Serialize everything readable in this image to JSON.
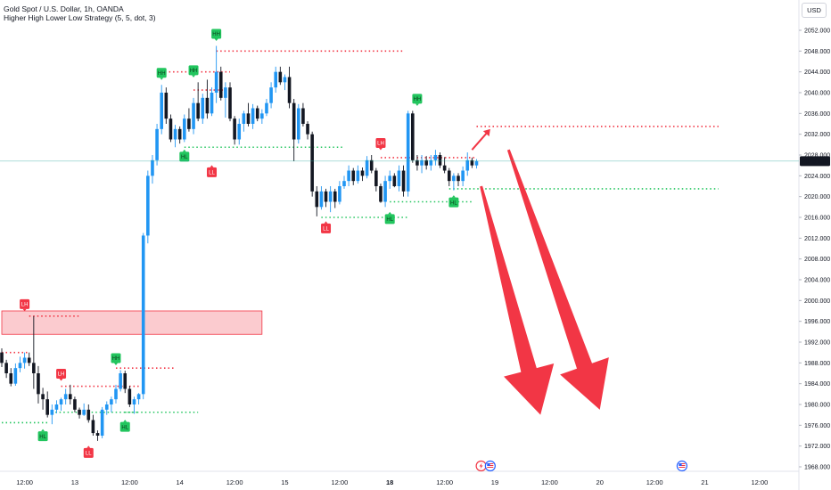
{
  "header": {
    "title": "Gold Spot / U.S. Dollar, 1h, OANDA",
    "subtitle": "Higher High Lower Low Strategy (5, 5, dot, 3)",
    "currency": "USD"
  },
  "colors": {
    "up": "#2196f3",
    "down": "#131722",
    "bullish_label": "#22c55e",
    "bearish_label": "#f23645",
    "supply_zone": "#f7a1a8",
    "arrow": "#f23645",
    "price_tag": "#131722"
  },
  "chart_data": {
    "type": "candlestick",
    "ylim": [
      1968,
      2054
    ],
    "yticks": [
      1968,
      1972,
      1976,
      1980,
      1984,
      1988,
      1992,
      1996,
      2000,
      2004,
      2008,
      2012,
      2016,
      2020,
      2024,
      2028,
      2032,
      2036,
      2040,
      2044,
      2048,
      2052
    ],
    "ytick_labels": [
      "1968.000",
      "1972.000",
      "1976.000",
      "1980.000",
      "1984.000",
      "1988.000",
      "1992.000",
      "1996.000",
      "2000.000",
      "2004.000",
      "2008.000",
      "2012.000",
      "2016.000",
      "2020.000",
      "2024.000",
      "2028.000",
      "2032.000",
      "2036.000",
      "2040.000",
      "2044.000",
      "2048.000",
      "2052.000"
    ],
    "xticks": [
      {
        "label": "12:00",
        "bar": 5,
        "bold": false
      },
      {
        "label": "13",
        "bar": 16,
        "bold": false
      },
      {
        "label": "12:00",
        "bar": 28,
        "bold": false
      },
      {
        "label": "14",
        "bar": 39,
        "bold": false
      },
      {
        "label": "12:00",
        "bar": 51,
        "bold": false
      },
      {
        "label": "15",
        "bar": 62,
        "bold": false
      },
      {
        "label": "12:00",
        "bar": 74,
        "bold": false
      },
      {
        "label": "18",
        "bar": 85,
        "bold": true
      },
      {
        "label": "12:00",
        "bar": 97,
        "bold": false
      },
      {
        "label": "19",
        "bar": 108,
        "bold": false
      },
      {
        "label": "12:00",
        "bar": 120,
        "bold": false
      },
      {
        "label": "20",
        "bar": 131,
        "bold": false
      },
      {
        "label": "12:00",
        "bar": 143,
        "bold": false
      },
      {
        "label": "21",
        "bar": 154,
        "bold": false
      },
      {
        "label": "12:00",
        "bar": 166,
        "bold": false
      }
    ],
    "last_price": 2026.83,
    "last_price_label": "2026.830",
    "ohlc": [
      [
        1990.0,
        1990.8,
        1987.2,
        1988.0
      ],
      [
        1988.0,
        1988.6,
        1985.1,
        1986.0
      ],
      [
        1986.0,
        1987.0,
        1983.5,
        1984.0
      ],
      [
        1984.0,
        1987.9,
        1983.6,
        1987.0
      ],
      [
        1987.0,
        1989.2,
        1986.2,
        1988.0
      ],
      [
        1988.0,
        1990.0,
        1986.9,
        1989.0
      ],
      [
        1989.0,
        1990.0,
        1987.4,
        1988.0
      ],
      [
        1988.0,
        1997.0,
        1983.0,
        1986.0
      ],
      [
        1986.0,
        1987.4,
        1980.2,
        1982.0
      ],
      [
        1982.0,
        1983.2,
        1979.0,
        1981.0
      ],
      [
        1981.0,
        1982.5,
        1977.5,
        1978.0
      ],
      [
        1978.0,
        1980.0,
        1976.2,
        1979.0
      ],
      [
        1979.0,
        1980.8,
        1978.3,
        1980.0
      ],
      [
        1980.0,
        1981.3,
        1978.8,
        1981.0
      ],
      [
        1981.0,
        1983.0,
        1980.0,
        1982.0
      ],
      [
        1982.0,
        1983.8,
        1980.0,
        1981.0
      ],
      [
        1981.0,
        1981.5,
        1978.5,
        1979.0
      ],
      [
        1979.0,
        1979.4,
        1977.3,
        1978.0
      ],
      [
        1978.0,
        1980.2,
        1977.8,
        1979.0
      ],
      [
        1979.0,
        1980.0,
        1976.5,
        1977.0
      ],
      [
        1977.0,
        1978.0,
        1974.0,
        1974.5
      ],
      [
        1974.5,
        1975.0,
        1973.0,
        1974.0
      ],
      [
        1974.0,
        1979.5,
        1973.5,
        1979.0
      ],
      [
        1979.0,
        1980.6,
        1978.0,
        1980.0
      ],
      [
        1980.0,
        1981.5,
        1978.5,
        1981.0
      ],
      [
        1981.0,
        1983.8,
        1980.2,
        1983.0
      ],
      [
        1983.0,
        1986.6,
        1982.5,
        1986.0
      ],
      [
        1986.0,
        1986.5,
        1982.2,
        1983.0
      ],
      [
        1983.0,
        1983.6,
        1979.5,
        1980.0
      ],
      [
        1980.0,
        1981.5,
        1978.2,
        1981.0
      ],
      [
        1981.0,
        1982.2,
        1980.0,
        1982.0
      ],
      [
        1982.0,
        2013.0,
        1981.0,
        2012.5
      ],
      [
        2012.5,
        2025.0,
        2011.0,
        2024.0
      ],
      [
        2024.0,
        2028.0,
        2022.5,
        2027.0
      ],
      [
        2027.0,
        2034.0,
        2026.0,
        2033.0
      ],
      [
        2033.0,
        2041.5,
        2032.0,
        2040.0
      ],
      [
        2040.0,
        2041.0,
        2034.0,
        2035.0
      ],
      [
        2035.0,
        2035.8,
        2030.5,
        2031.0
      ],
      [
        2031.0,
        2033.8,
        2029.5,
        2033.0
      ],
      [
        2033.0,
        2033.5,
        2030.2,
        2031.0
      ],
      [
        2031.0,
        2035.8,
        2030.5,
        2035.0
      ],
      [
        2035.0,
        2037.0,
        2032.5,
        2033.0
      ],
      [
        2033.0,
        2039.0,
        2032.0,
        2038.0
      ],
      [
        2038.0,
        2042.0,
        2034.5,
        2035.0
      ],
      [
        2035.0,
        2039.8,
        2034.0,
        2039.0
      ],
      [
        2039.0,
        2042.5,
        2035.0,
        2036.0
      ],
      [
        2036.0,
        2041.0,
        2035.5,
        2040.0
      ],
      [
        2040.0,
        2049.0,
        2038.0,
        2044.0
      ],
      [
        2044.0,
        2045.0,
        2038.5,
        2039.0
      ],
      [
        2039.0,
        2042.0,
        2035.2,
        2041.0
      ],
      [
        2041.0,
        2042.0,
        2034.5,
        2035.0
      ],
      [
        2035.0,
        2035.5,
        2030.0,
        2031.0
      ],
      [
        2031.0,
        2035.0,
        2030.0,
        2034.0
      ],
      [
        2034.0,
        2036.5,
        2032.5,
        2036.0
      ],
      [
        2036.0,
        2038.0,
        2033.5,
        2034.0
      ],
      [
        2034.0,
        2037.8,
        2033.0,
        2037.0
      ],
      [
        2037.0,
        2037.5,
        2034.5,
        2035.0
      ],
      [
        2035.0,
        2036.8,
        2034.0,
        2036.0
      ],
      [
        2036.0,
        2038.8,
        2035.5,
        2038.0
      ],
      [
        2038.0,
        2042.0,
        2037.0,
        2041.0
      ],
      [
        2041.0,
        2045.0,
        2040.0,
        2044.0
      ],
      [
        2044.0,
        2045.0,
        2041.5,
        2042.0
      ],
      [
        2042.0,
        2043.5,
        2040.5,
        2043.0
      ],
      [
        2043.0,
        2045.0,
        2037.0,
        2038.0
      ],
      [
        2038.0,
        2038.8,
        2026.8,
        2031.0
      ],
      [
        2031.0,
        2037.8,
        2030.2,
        2037.0
      ],
      [
        2037.0,
        2038.0,
        2033.5,
        2034.0
      ],
      [
        2034.0,
        2034.5,
        2031.0,
        2032.0
      ],
      [
        2032.0,
        2032.5,
        2020.0,
        2021.0
      ],
      [
        2021.0,
        2022.0,
        2016.2,
        2018.0
      ],
      [
        2018.0,
        2022.0,
        2017.5,
        2021.0
      ],
      [
        2021.0,
        2021.5,
        2018.0,
        2019.0
      ],
      [
        2019.0,
        2022.0,
        2017.0,
        2021.0
      ],
      [
        2021.0,
        2021.5,
        2017.8,
        2019.0
      ],
      [
        2019.0,
        2023.0,
        2018.5,
        2022.0
      ],
      [
        2022.0,
        2024.0,
        2021.5,
        2023.0
      ],
      [
        2023.0,
        2026.0,
        2022.0,
        2025.0
      ],
      [
        2025.0,
        2025.5,
        2022.2,
        2023.0
      ],
      [
        2023.0,
        2026.0,
        2022.5,
        2025.0
      ],
      [
        2025.0,
        2025.6,
        2023.0,
        2024.0
      ],
      [
        2024.0,
        2027.8,
        2023.5,
        2027.0
      ],
      [
        2027.0,
        2028.0,
        2024.5,
        2025.0
      ],
      [
        2025.0,
        2025.5,
        2021.0,
        2022.0
      ],
      [
        2022.0,
        2022.5,
        2018.8,
        2019.0
      ],
      [
        2019.0,
        2024.0,
        2018.0,
        2023.0
      ],
      [
        2023.0,
        2025.0,
        2021.5,
        2024.0
      ],
      [
        2024.0,
        2024.5,
        2021.8,
        2022.0
      ],
      [
        2022.0,
        2026.0,
        2021.0,
        2025.0
      ],
      [
        2025.0,
        2026.0,
        2020.0,
        2021.0
      ],
      [
        2021.0,
        2036.5,
        2020.0,
        2036.0
      ],
      [
        2036.0,
        2036.5,
        2026.5,
        2027.0
      ],
      [
        2027.0,
        2028.0,
        2025.0,
        2026.0
      ],
      [
        2026.0,
        2028.0,
        2024.5,
        2027.0
      ],
      [
        2027.0,
        2027.8,
        2025.2,
        2026.0
      ],
      [
        2026.0,
        2028.0,
        2025.0,
        2027.0
      ],
      [
        2027.0,
        2029.0,
        2026.0,
        2028.0
      ],
      [
        2028.0,
        2028.5,
        2025.5,
        2026.0
      ],
      [
        2026.0,
        2027.6,
        2024.5,
        2025.0
      ],
      [
        2025.0,
        2025.5,
        2022.0,
        2023.0
      ],
      [
        2023.0,
        2024.5,
        2021.2,
        2024.0
      ],
      [
        2024.0,
        2024.5,
        2022.0,
        2023.0
      ],
      [
        2023.0,
        2025.8,
        2022.0,
        2025.0
      ],
      [
        2025.0,
        2028.5,
        2024.0,
        2027.0
      ],
      [
        2027.0,
        2027.5,
        2025.5,
        2026.0
      ],
      [
        2026.0,
        2027.2,
        2025.4,
        2026.83
      ]
    ],
    "levels": [
      {
        "name": "hh-top-line",
        "kind": "resistance",
        "price": 2048.0,
        "from": 47,
        "to": 88
      },
      {
        "name": "hh-mid-line",
        "kind": "resistance",
        "price": 2044.0,
        "from": 34,
        "to": 50
      },
      {
        "name": "hh-line-2",
        "kind": "resistance",
        "price": 2040.5,
        "from": 42,
        "to": 50
      },
      {
        "name": "current-hh-line",
        "kind": "resistance",
        "price": 2033.5,
        "from": 104,
        "to": 157
      },
      {
        "name": "lh-right-line",
        "kind": "resistance",
        "price": 2027.5,
        "from": 83,
        "to": 104
      },
      {
        "name": "hl-upper-line",
        "kind": "support",
        "price": 2029.5,
        "from": 40,
        "to": 75
      },
      {
        "name": "hl-right-line",
        "kind": "support",
        "price": 2021.5,
        "from": 98,
        "to": 157
      },
      {
        "name": "hl-mid-line",
        "kind": "support",
        "price": 2019.0,
        "from": 85,
        "to": 103
      },
      {
        "name": "ll-line",
        "kind": "support",
        "price": 2016.0,
        "from": 70,
        "to": 89
      },
      {
        "name": "lh-left-line",
        "kind": "resistance",
        "price": 1997.0,
        "from": 6,
        "to": 17
      },
      {
        "name": "lh-upper-line",
        "kind": "resistance",
        "price": 1990.0,
        "from": 0,
        "to": 6
      },
      {
        "name": "hh-left-line",
        "kind": "resistance",
        "price": 1987.0,
        "from": 25,
        "to": 38
      },
      {
        "name": "lh-mid-line",
        "kind": "resistance",
        "price": 1983.5,
        "from": 13,
        "to": 30
      },
      {
        "name": "hl-left-line",
        "kind": "support",
        "price": 1976.5,
        "from": 0,
        "to": 10
      },
      {
        "name": "hl-mid-left-line",
        "kind": "support",
        "price": 1978.5,
        "from": 10,
        "to": 30
      },
      {
        "name": "hl-lower-line",
        "kind": "support",
        "price": 1978.5,
        "from": 27,
        "to": 43
      }
    ],
    "swing_labels": [
      {
        "text": "HH",
        "kind": "bullish",
        "bar": 47,
        "price": 2049.0,
        "position": "above"
      },
      {
        "text": "HH",
        "kind": "bullish",
        "bar": 35,
        "price": 2041.5,
        "position": "above"
      },
      {
        "text": "HH",
        "kind": "bullish",
        "bar": 42,
        "price": 2042.0,
        "position": "above"
      },
      {
        "text": "HH",
        "kind": "bullish",
        "bar": 91,
        "price": 2036.5,
        "position": "above"
      },
      {
        "text": "HL",
        "kind": "bullish",
        "bar": 40,
        "price": 2030.0,
        "position": "below"
      },
      {
        "text": "LL",
        "kind": "bearish",
        "bar": 46,
        "price": 2027.0,
        "position": "below"
      },
      {
        "text": "LH",
        "kind": "bearish",
        "bar": 83,
        "price": 2028.0,
        "position": "above"
      },
      {
        "text": "HL",
        "kind": "bullish",
        "bar": 85,
        "price": 2018.0,
        "position": "below"
      },
      {
        "text": "HL",
        "kind": "bullish",
        "bar": 99,
        "price": 2021.2,
        "position": "below"
      },
      {
        "text": "LL",
        "kind": "bearish",
        "bar": 71,
        "price": 2016.2,
        "position": "below"
      },
      {
        "text": "LH",
        "kind": "bearish",
        "bar": 5,
        "price": 1997.0,
        "position": "above"
      },
      {
        "text": "LH",
        "kind": "bearish",
        "bar": 13,
        "price": 1983.6,
        "position": "above"
      },
      {
        "text": "HH",
        "kind": "bullish",
        "bar": 25,
        "price": 1986.6,
        "position": "above"
      },
      {
        "text": "HL",
        "kind": "bullish",
        "bar": 9,
        "price": 1976.2,
        "position": "below"
      },
      {
        "text": "LL",
        "kind": "bearish",
        "bar": 19,
        "price": 1973.0,
        "position": "below"
      },
      {
        "text": "HL",
        "kind": "bullish",
        "bar": 27,
        "price": 1978.0,
        "position": "below"
      }
    ],
    "zones": [
      {
        "name": "supply-zone",
        "price_top": 1998.0,
        "price_bottom": 1993.5,
        "from": 0,
        "to": 57
      }
    ],
    "arrows": [
      {
        "name": "small-up-arrow",
        "from_bar": 103,
        "from_price": 2029.0,
        "to_bar": 107,
        "to_price": 2033.0,
        "size": "small"
      },
      {
        "name": "down-arrow-left",
        "from_bar": 105,
        "from_price": 2022.0,
        "to_bar": 118,
        "to_price": 1978.0,
        "size": "large"
      },
      {
        "name": "down-arrow-right",
        "from_bar": 111,
        "from_price": 2029.0,
        "to_bar": 131,
        "to_price": 1979.0,
        "size": "large"
      }
    ],
    "event_markers": [
      {
        "name": "flash-event-icon",
        "bar": 105,
        "color": "#f23645",
        "glyph": "⚡"
      },
      {
        "name": "us-flag-event-icon",
        "bar": 107,
        "color": "#2962ff",
        "glyph": "🇺"
      },
      {
        "name": "us-flag-event-icon-2",
        "bar": 149,
        "color": "#2962ff",
        "glyph": "🇺"
      }
    ]
  }
}
